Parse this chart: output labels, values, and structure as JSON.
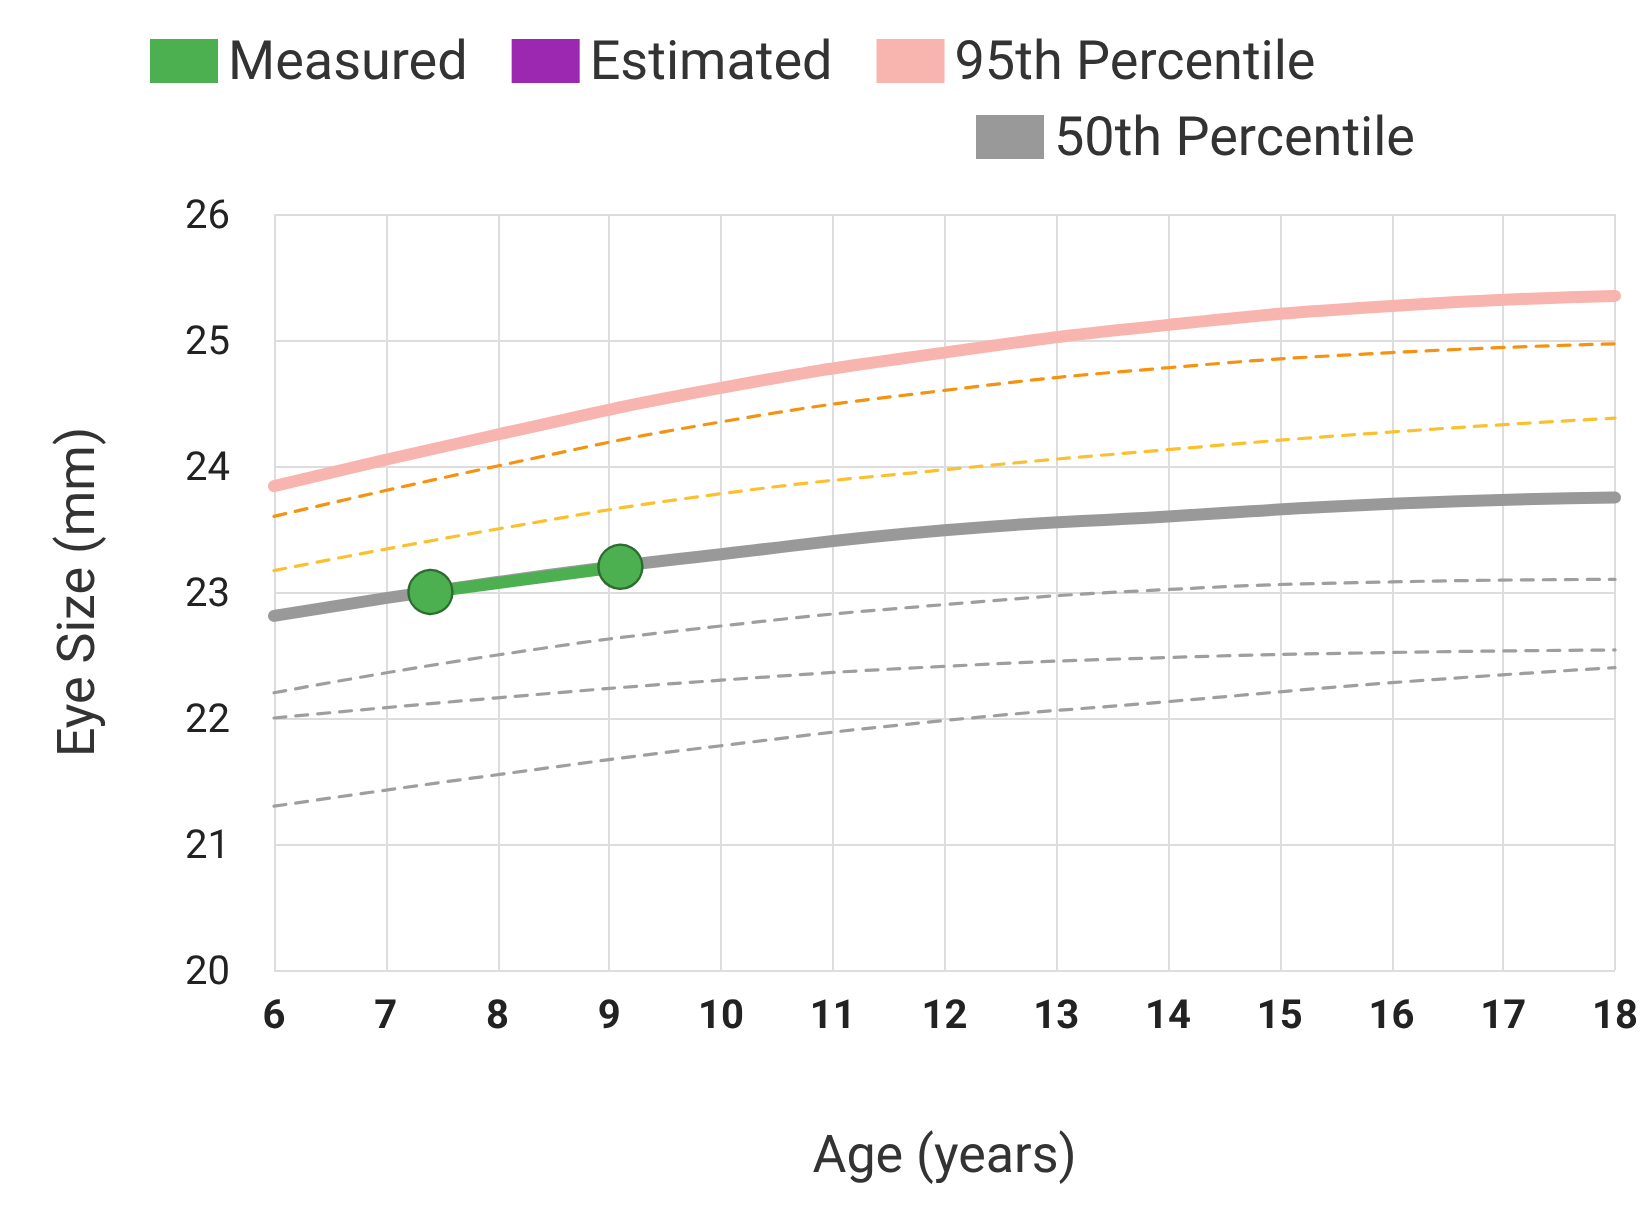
{
  "chart_data": {
    "type": "line",
    "xlabel": "Age (years)",
    "ylabel": "Eye Size (mm)",
    "xlim": [
      6,
      18
    ],
    "xticks": [
      6,
      7,
      8,
      9,
      10,
      11,
      12,
      13,
      14,
      15,
      16,
      17,
      18
    ],
    "ylim": [
      20,
      26
    ],
    "yticks": [
      20,
      21,
      22,
      23,
      24,
      25,
      26
    ],
    "grid": true,
    "legend": "top",
    "marker": "none",
    "x": [
      6,
      8,
      10,
      12,
      14,
      16,
      18
    ],
    "series": [
      {
        "name": "Measured",
        "color": "#4caf50",
        "x": [
          7.4,
          9.1
        ],
        "values": [
          23.0,
          23.2
        ],
        "marker": "circle",
        "line_style": "solid"
      },
      {
        "name": "Estimated",
        "color": "#9c27b0",
        "values": [
          null,
          null,
          null,
          null,
          null,
          null,
          null
        ],
        "line_style": "solid"
      },
      {
        "name": "95th Percentile",
        "color": "#f8b4ae",
        "values": [
          23.84,
          24.25,
          24.62,
          24.9,
          25.12,
          25.27,
          25.35
        ],
        "line_style": "solid"
      },
      {
        "name": "50th Percentile",
        "color": "#999999",
        "values": [
          22.81,
          23.08,
          23.3,
          23.49,
          23.6,
          23.7,
          23.75
        ],
        "line_style": "solid"
      },
      {
        "color": "#f5920f",
        "values": [
          23.6,
          24.0,
          24.35,
          24.6,
          24.78,
          24.9,
          24.97
        ],
        "line_style": "dashed"
      },
      {
        "color": "#fbc02d",
        "values": [
          23.17,
          23.5,
          23.78,
          23.97,
          24.13,
          24.27,
          24.38
        ],
        "line_style": "dashed"
      },
      {
        "color": "#9e9e9e",
        "values": [
          22.2,
          22.5,
          22.73,
          22.9,
          23.02,
          23.08,
          23.1
        ],
        "line_style": "dashed"
      },
      {
        "color": "#9e9e9e",
        "values": [
          22.0,
          22.16,
          22.3,
          22.41,
          22.48,
          22.52,
          22.54
        ],
        "line_style": "dashed"
      },
      {
        "color": "#9e9e9e",
        "values": [
          21.3,
          21.55,
          21.78,
          21.98,
          22.13,
          22.28,
          22.4
        ],
        "line_style": "dashed"
      }
    ]
  }
}
